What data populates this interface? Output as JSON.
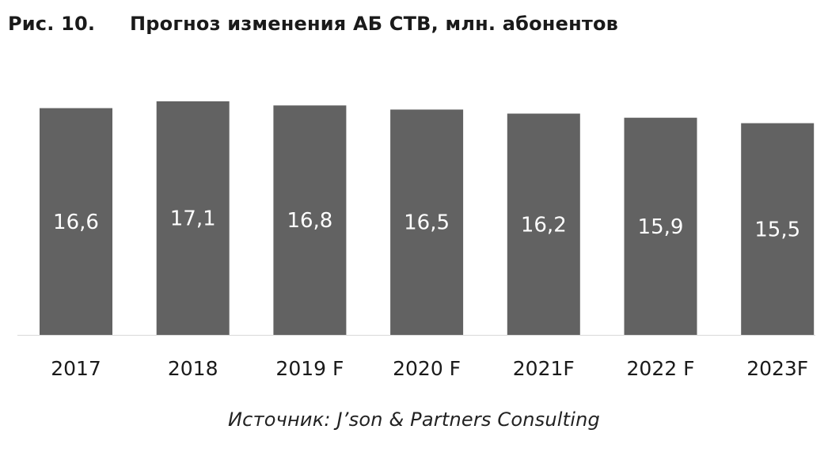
{
  "figure": {
    "number": "Рис. 10.",
    "title": "Прогноз изменения АБ СТВ, млн. абонентов"
  },
  "source": "Источник: J’son & Partners Consulting",
  "chart_data": {
    "type": "bar",
    "categories": [
      "2017",
      "2018",
      "2019 F",
      "2020 F",
      "2021F",
      "2022 F",
      "2023F"
    ],
    "values": [
      16.6,
      17.1,
      16.8,
      16.5,
      16.2,
      15.9,
      15.5
    ],
    "value_labels": [
      "16,6",
      "17,1",
      "16,8",
      "16,5",
      "16,2",
      "15,9",
      "15,5"
    ],
    "bar_color": "#626262",
    "label_color": "#ffffff",
    "axis_color": "#d9d9d9",
    "tick_color": "#1a1a1a",
    "grid": false,
    "legend": "none"
  }
}
